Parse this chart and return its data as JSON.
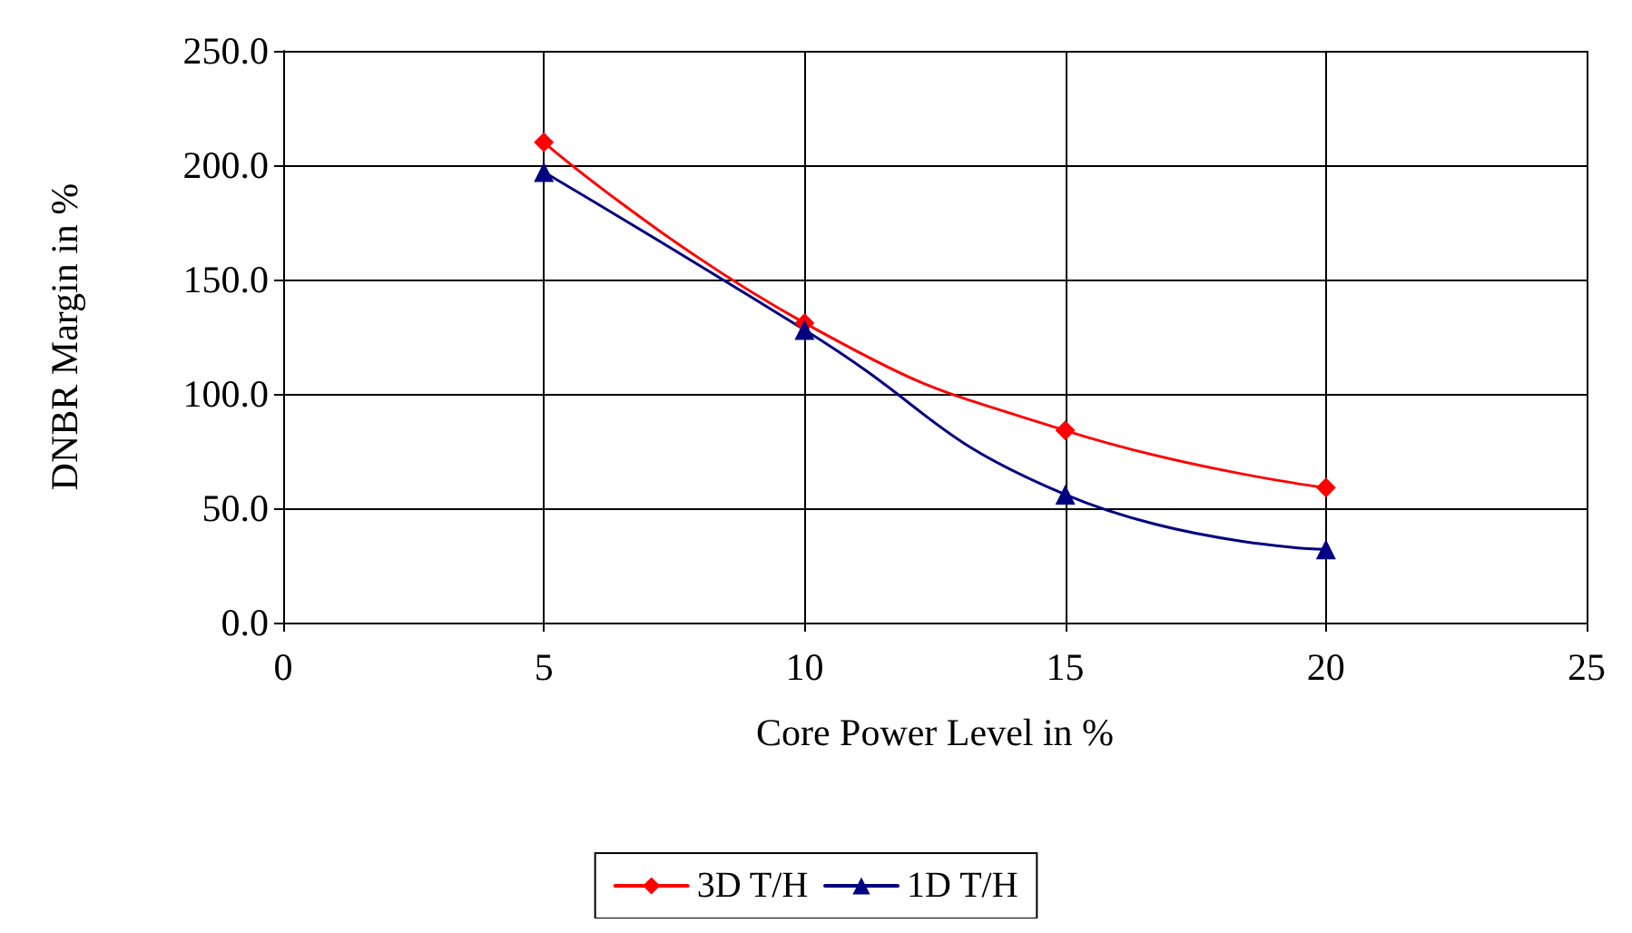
{
  "chart_data": {
    "type": "line",
    "xlabel": "Core Power Level in %",
    "ylabel": "DNBR Margin in %",
    "x": [
      5,
      10,
      15,
      20
    ],
    "series": [
      {
        "name": "3D T/H",
        "color": "#ff0000",
        "marker": "diamond",
        "values": [
          210,
          131,
          84,
          59
        ]
      },
      {
        "name": "1D T/H",
        "color": "#000080",
        "marker": "triangle",
        "values": [
          197,
          128,
          56,
          32
        ]
      }
    ],
    "xlim": [
      0,
      25
    ],
    "xticks": [
      0,
      5,
      10,
      15,
      20,
      25
    ],
    "ylim": [
      0,
      250
    ],
    "yticks": [
      {
        "value": 0,
        "label": "0.0"
      },
      {
        "value": 50,
        "label": "50.0"
      },
      {
        "value": 100,
        "label": "100.0"
      },
      {
        "value": 150,
        "label": "150.0"
      },
      {
        "value": 200,
        "label": "200.0"
      },
      {
        "value": 250,
        "label": "250.0"
      }
    ],
    "grid": true,
    "legend": "bottom",
    "line_style": "solid"
  }
}
